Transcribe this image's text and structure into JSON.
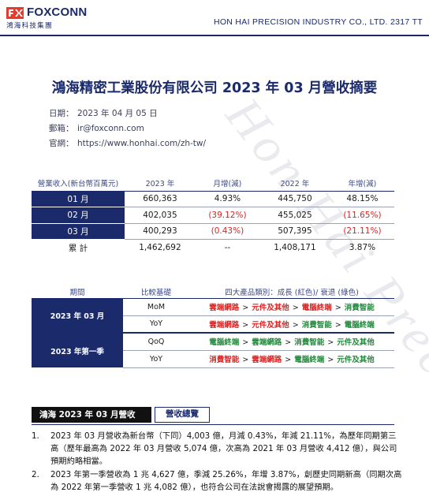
{
  "header": {
    "logo_word": "FOXCONN",
    "logo_sub": "鴻海科技集團",
    "company_en": "HON HAI PRECISION INDUSTRY CO., LTD. 2317 TT",
    "watermark": "Hon Hai Precision"
  },
  "title": "鴻海精密工業股份有限公司 2023 年 03 月營收摘要",
  "meta": [
    {
      "label": "日期：",
      "value": "2023 年 04 月 05 日"
    },
    {
      "label": "郵箱：",
      "value": "ir@foxconn.com"
    },
    {
      "label": "官網：",
      "value": "https://www.honhai.com/zh-tw/"
    }
  ],
  "revenue_table": {
    "headers": [
      "營業收入(新台幣百萬元)",
      "2023 年",
      "月增(減)",
      "2022 年",
      "年增(減)"
    ],
    "rows": [
      {
        "month": "01 月",
        "y2023": "660,363",
        "mom": "4.93%",
        "y2022": "445,750",
        "yoy": "48.15%"
      },
      {
        "month": "02 月",
        "y2023": "402,035",
        "mom": "(39.12%)",
        "y2022": "455,025",
        "yoy": "(11.65%)"
      },
      {
        "month": "03 月",
        "y2023": "400,293",
        "mom": "(0.43%)",
        "y2022": "507,395",
        "yoy": "(21.11%)"
      }
    ],
    "total": {
      "label": "累 計",
      "y2023": "1,462,692",
      "mom": "--",
      "y2022": "1,408,171",
      "yoy": "3.87%"
    }
  },
  "category_table": {
    "headers": [
      "期間",
      "比較基礎",
      "四大產品類別：成長 (紅色)/ 衰退 (綠色)"
    ],
    "groups": [
      {
        "period": "2023 年 03 月",
        "rows": [
          {
            "basis": "MoM",
            "items": [
              {
                "text": "雲端網路",
                "color": "red"
              },
              {
                "text": "元件及其他",
                "color": "red"
              },
              {
                "text": "電腦終端",
                "color": "red"
              },
              {
                "text": "消費智能",
                "color": "green"
              }
            ]
          },
          {
            "basis": "YoY",
            "items": [
              {
                "text": "雲端網路",
                "color": "red"
              },
              {
                "text": "元件及其他",
                "color": "red"
              },
              {
                "text": "消費智能",
                "color": "green"
              },
              {
                "text": "電腦終端",
                "color": "green"
              }
            ]
          }
        ]
      },
      {
        "period": "2023 年第一季",
        "rows": [
          {
            "basis": "QoQ",
            "items": [
              {
                "text": "電腦終端",
                "color": "green"
              },
              {
                "text": "雲端網路",
                "color": "green"
              },
              {
                "text": "消費智能",
                "color": "green"
              },
              {
                "text": "元件及其他",
                "color": "green"
              }
            ]
          },
          {
            "basis": "YoY",
            "items": [
              {
                "text": "消費智能",
                "color": "red"
              },
              {
                "text": "雲端網路",
                "color": "red"
              },
              {
                "text": "電腦終端",
                "color": "green"
              },
              {
                "text": "元件及其他",
                "color": "green"
              }
            ]
          }
        ]
      }
    ],
    "separator": ">",
    "colors": {
      "red": "#dd2222",
      "green": "#1f8a3a"
    }
  },
  "summary": {
    "bar_title": "鴻海 2023 年 03 月營收",
    "tab_label": "營收總覽",
    "items": [
      {
        "num": "1.",
        "text": "2023 年 03 月營收為新台幣（下同）4,003 億，月減 0.43%，年減 21.11%，為歷年同期第三高（歷年最高為 2022 年 03 月營收 5,074 億，次高為 2021 年 03 月營收 4,412 億），與公司預期約略相當。"
      },
      {
        "num": "2.",
        "text": "2023 年第一季營收為 1 兆 4,627 億，季減 25.26%，年增 3.87%，創歷史同期新高（同期次高為 2022 年第一季營收 1 兆 4,082 億），也符合公司在法說會揭露的展望預期。"
      }
    ]
  },
  "accent": "#1a2a6b"
}
